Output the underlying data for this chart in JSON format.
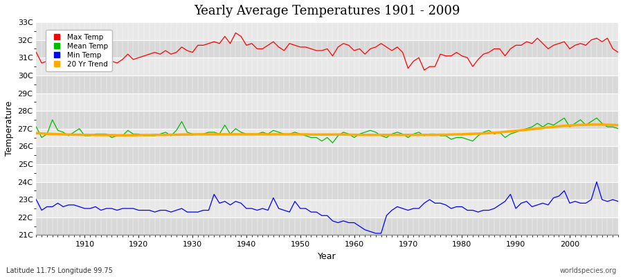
{
  "title": "Yearly Average Temperatures 1901 - 2009",
  "xlabel": "Year",
  "ylabel": "Temperature",
  "x_start": 1901,
  "x_end": 2009,
  "yticks": [
    21,
    22,
    23,
    24,
    25,
    26,
    27,
    28,
    29,
    30,
    31,
    32,
    33
  ],
  "ytick_labels": [
    "21C",
    "22C",
    "23C",
    "24C",
    "25C",
    "26C",
    "27C",
    "28C",
    "29C",
    "30C",
    "31C",
    "32C",
    "33C"
  ],
  "ylim": [
    21,
    33
  ],
  "xlim": [
    1901,
    2009
  ],
  "bg_color": "#ffffff",
  "plot_bg_color": "#e8e8e8",
  "band_color_dark": "#d8d8d8",
  "band_color_light": "#e8e8e8",
  "grid_color": "#ffffff",
  "max_color": "#ff0000",
  "mean_color": "#00bb00",
  "min_color": "#0000ff",
  "trend_color": "#ffaa00",
  "legend_labels": [
    "Max Temp",
    "Mean Temp",
    "Min Temp",
    "20 Yr Trend"
  ],
  "legend_colors": [
    "#ff0000",
    "#00bb00",
    "#0000ff",
    "#ffaa00"
  ],
  "footnote_left": "Latitude 11.75 Longitude 99.75",
  "footnote_right": "worldspecies.org",
  "max_temps": [
    31.3,
    30.7,
    30.8,
    30.9,
    31.1,
    30.6,
    30.8,
    31.0,
    30.7,
    30.6,
    30.9,
    30.5,
    31.0,
    31.1,
    30.8,
    30.7,
    30.9,
    31.2,
    30.9,
    31.0,
    31.1,
    31.2,
    31.3,
    31.2,
    31.4,
    31.2,
    31.3,
    31.6,
    31.4,
    31.3,
    31.7,
    31.7,
    31.8,
    31.9,
    31.8,
    32.2,
    31.8,
    32.4,
    32.2,
    31.7,
    31.8,
    31.5,
    31.5,
    31.7,
    31.9,
    31.6,
    31.4,
    31.8,
    31.7,
    31.6,
    31.6,
    31.5,
    31.4,
    31.4,
    31.5,
    31.1,
    31.6,
    31.8,
    31.7,
    31.4,
    31.5,
    31.2,
    31.5,
    31.6,
    31.8,
    31.6,
    31.4,
    31.6,
    31.3,
    30.4,
    30.8,
    31.0,
    30.3,
    30.5,
    30.5,
    31.2,
    31.1,
    31.1,
    31.3,
    31.1,
    31.0,
    30.5,
    30.9,
    31.2,
    31.3,
    31.5,
    31.5,
    31.1,
    31.5,
    31.7,
    31.7,
    31.9,
    31.8,
    32.1,
    31.8,
    31.5,
    31.7,
    31.8,
    31.9,
    31.5,
    31.7,
    31.8,
    31.7,
    32.0,
    32.1,
    31.9,
    32.1,
    31.5,
    31.3
  ],
  "mean_temps": [
    27.1,
    26.5,
    26.7,
    27.5,
    26.9,
    26.8,
    26.6,
    26.8,
    27.0,
    26.6,
    26.6,
    26.7,
    26.7,
    26.7,
    26.5,
    26.6,
    26.6,
    26.9,
    26.7,
    26.7,
    26.6,
    26.6,
    26.6,
    26.7,
    26.8,
    26.6,
    26.9,
    27.4,
    26.8,
    26.7,
    26.7,
    26.7,
    26.8,
    26.8,
    26.7,
    27.2,
    26.7,
    27.0,
    26.8,
    26.7,
    26.7,
    26.7,
    26.8,
    26.7,
    26.9,
    26.8,
    26.7,
    26.7,
    26.8,
    26.7,
    26.6,
    26.5,
    26.5,
    26.3,
    26.5,
    26.2,
    26.6,
    26.8,
    26.7,
    26.5,
    26.7,
    26.8,
    26.9,
    26.8,
    26.6,
    26.5,
    26.7,
    26.8,
    26.7,
    26.5,
    26.7,
    26.8,
    26.6,
    26.7,
    26.7,
    26.6,
    26.6,
    26.4,
    26.5,
    26.5,
    26.4,
    26.3,
    26.6,
    26.8,
    26.9,
    26.7,
    26.8,
    26.5,
    26.7,
    26.8,
    26.9,
    27.0,
    27.1,
    27.3,
    27.1,
    27.3,
    27.2,
    27.4,
    27.6,
    27.1,
    27.3,
    27.5,
    27.2,
    27.4,
    27.6,
    27.3,
    27.1,
    27.1,
    27.0
  ],
  "min_temps": [
    23.0,
    22.4,
    22.6,
    22.6,
    22.8,
    22.6,
    22.7,
    22.7,
    22.6,
    22.5,
    22.5,
    22.6,
    22.4,
    22.5,
    22.5,
    22.4,
    22.5,
    22.5,
    22.5,
    22.4,
    22.4,
    22.4,
    22.3,
    22.4,
    22.4,
    22.3,
    22.4,
    22.5,
    22.3,
    22.3,
    22.3,
    22.4,
    22.4,
    23.3,
    22.8,
    22.9,
    22.7,
    22.9,
    22.8,
    22.5,
    22.5,
    22.4,
    22.5,
    22.4,
    23.1,
    22.5,
    22.4,
    22.3,
    22.9,
    22.5,
    22.5,
    22.3,
    22.3,
    22.1,
    22.1,
    21.8,
    21.7,
    21.8,
    21.7,
    21.7,
    21.5,
    21.3,
    21.2,
    21.1,
    21.1,
    22.1,
    22.4,
    22.6,
    22.5,
    22.4,
    22.5,
    22.5,
    22.8,
    23.0,
    22.8,
    22.8,
    22.7,
    22.5,
    22.6,
    22.6,
    22.4,
    22.4,
    22.3,
    22.4,
    22.4,
    22.5,
    22.7,
    22.9,
    23.3,
    22.5,
    22.8,
    22.9,
    22.6,
    22.7,
    22.8,
    22.7,
    23.1,
    23.2,
    23.5,
    22.8,
    22.9,
    22.8,
    22.8,
    23.0,
    24.0,
    23.0,
    22.9,
    23.0,
    22.9
  ],
  "trend_mean": [
    26.75,
    26.73,
    26.71,
    26.7,
    26.69,
    26.68,
    26.67,
    26.66,
    26.66,
    26.65,
    26.65,
    26.64,
    26.64,
    26.64,
    26.64,
    26.63,
    26.63,
    26.63,
    26.63,
    26.64,
    26.64,
    26.64,
    26.65,
    26.65,
    26.65,
    26.66,
    26.66,
    26.67,
    26.67,
    26.67,
    26.68,
    26.68,
    26.68,
    26.68,
    26.68,
    26.68,
    26.68,
    26.68,
    26.68,
    26.68,
    26.68,
    26.68,
    26.68,
    26.68,
    26.68,
    26.68,
    26.68,
    26.68,
    26.68,
    26.68,
    26.68,
    26.67,
    26.67,
    26.67,
    26.67,
    26.67,
    26.67,
    26.67,
    26.66,
    26.66,
    26.65,
    26.65,
    26.65,
    26.65,
    26.65,
    26.65,
    26.65,
    26.65,
    26.65,
    26.65,
    26.65,
    26.65,
    26.65,
    26.65,
    26.65,
    26.66,
    26.66,
    26.67,
    26.68,
    26.68,
    26.7,
    26.71,
    26.72,
    26.73,
    26.75,
    26.77,
    26.79,
    26.82,
    26.85,
    26.88,
    26.91,
    26.94,
    26.97,
    27.01,
    27.04,
    27.07,
    27.1,
    27.13,
    27.16,
    27.18,
    27.2,
    27.21,
    27.22,
    27.23,
    27.23,
    27.23,
    27.22,
    27.21,
    27.2
  ]
}
